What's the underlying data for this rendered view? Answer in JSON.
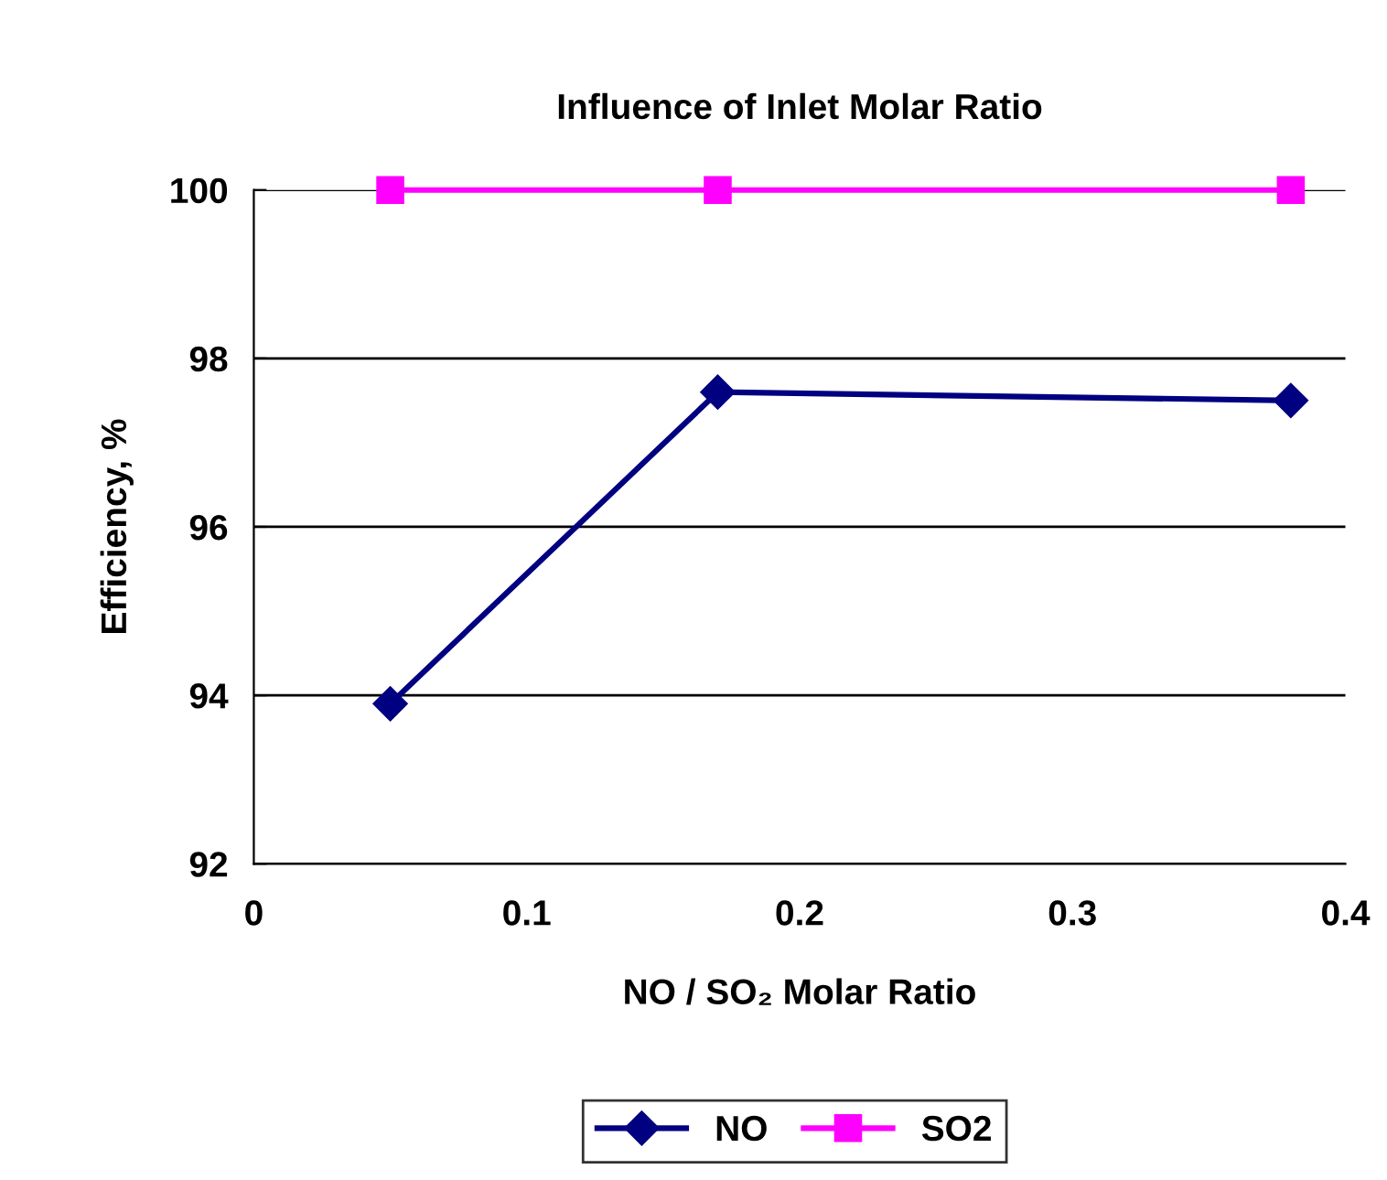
{
  "chart_data": {
    "type": "line",
    "title": "Influence of Inlet Molar Ratio",
    "xlabel": "NO / SO₂ Molar Ratio",
    "ylabel": "Efficiency, %",
    "x": [
      0.05,
      0.17,
      0.38
    ],
    "series": [
      {
        "name": "NO",
        "color": "#000080",
        "values": [
          93.9,
          97.6,
          97.5
        ],
        "marker": "diamond"
      },
      {
        "name": "SO2",
        "color": "#ff00ff",
        "values": [
          100,
          100,
          100
        ],
        "marker": "square"
      }
    ],
    "xlim": [
      0,
      0.4
    ],
    "xticks": [
      0,
      0.1,
      0.2,
      0.3,
      0.4
    ],
    "ylim": [
      92,
      100
    ],
    "yticks": [
      92,
      94,
      96,
      98,
      100
    ],
    "grid": "y",
    "legend": "bottom",
    "line_style": "solid"
  }
}
